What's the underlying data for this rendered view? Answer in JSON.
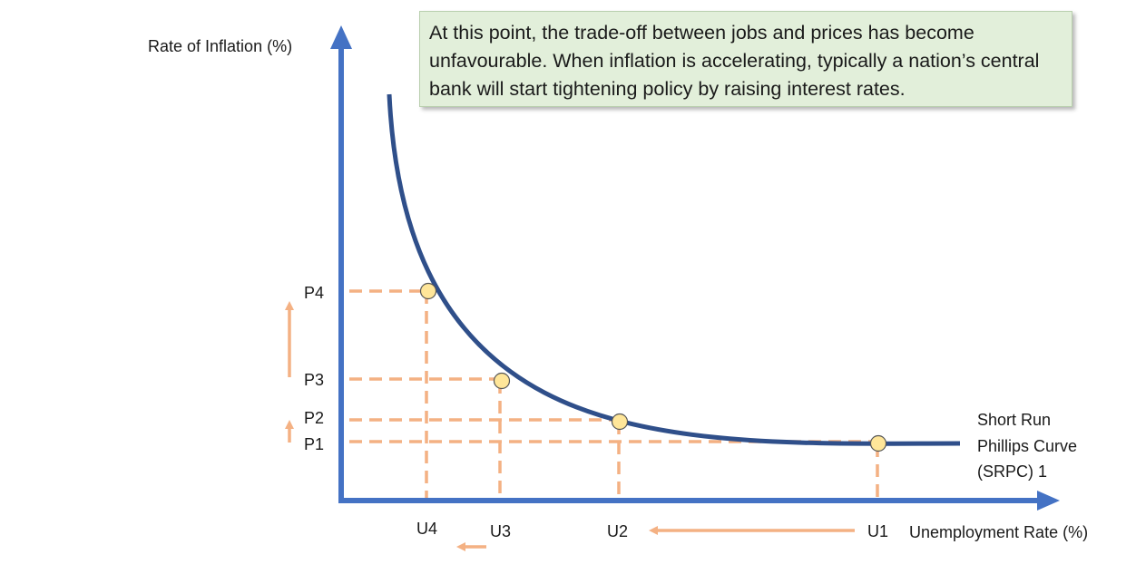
{
  "annotation": "At this point, the trade-off between jobs and prices has become unfavourable. When inflation is accelerating, typically a nation’s central bank will start tightening policy by raising interest rates.",
  "axes": {
    "y_label": "Rate of Inflation (%)",
    "x_label": "Unemployment Rate (%)"
  },
  "curve": {
    "label_lines": [
      "Short Run",
      "Phillips Curve",
      "(SRPC) 1"
    ]
  },
  "points": [
    {
      "u": "U1",
      "p": "P1"
    },
    {
      "u": "U2",
      "p": "P2"
    },
    {
      "u": "U3",
      "p": "P3"
    },
    {
      "u": "U4",
      "p": "P4"
    }
  ],
  "colors": {
    "axis": "#4472c4",
    "curve": "#2f4f8a",
    "guide": "#f4b183",
    "point_fill": "#ffe699",
    "note_bg": "#e2efda"
  }
}
